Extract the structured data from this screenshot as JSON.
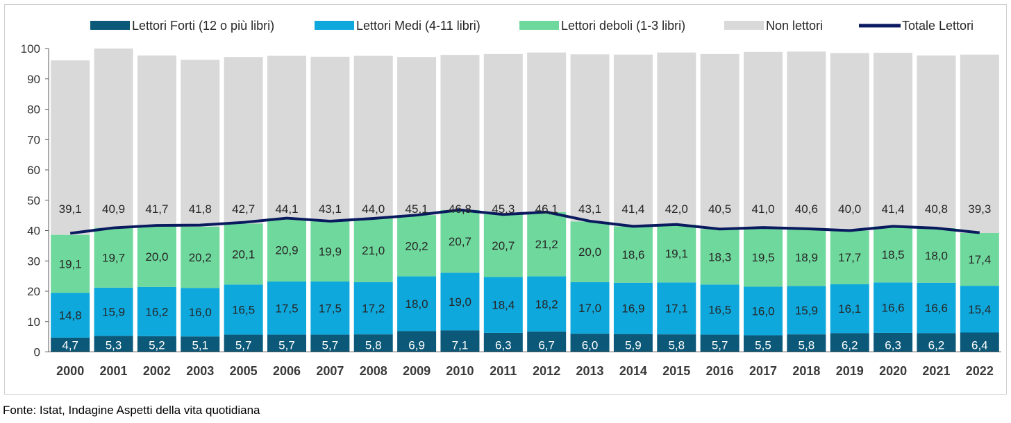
{
  "chart_data": {
    "type": "bar",
    "stacked": true,
    "categories": [
      "2000",
      "2001",
      "2002",
      "2003",
      "2005",
      "2006",
      "2007",
      "2008",
      "2009",
      "2010",
      "2011",
      "2012",
      "2013",
      "2014",
      "2015",
      "2016",
      "2017",
      "2018",
      "2019",
      "2020",
      "2021",
      "2022"
    ],
    "series": [
      {
        "name": "Lettori Forti (12 o più libri)",
        "color": "#0b5878",
        "values": [
          4.7,
          5.3,
          5.2,
          5.1,
          5.7,
          5.7,
          5.7,
          5.8,
          6.9,
          7.1,
          6.3,
          6.7,
          6.0,
          5.9,
          5.8,
          5.7,
          5.5,
          5.8,
          6.2,
          6.3,
          6.2,
          6.4
        ]
      },
      {
        "name": "Lettori Medi (4-11 libri)",
        "color": "#0ea8dd",
        "values": [
          14.8,
          15.9,
          16.2,
          16.0,
          16.5,
          17.5,
          17.5,
          17.2,
          18.0,
          19.0,
          18.4,
          18.2,
          17.0,
          16.9,
          17.1,
          16.5,
          16.0,
          15.9,
          16.1,
          16.6,
          16.6,
          15.4
        ]
      },
      {
        "name": "Lettori deboli (1-3 libri)",
        "color": "#6fd89c",
        "values": [
          19.1,
          19.7,
          20.0,
          20.2,
          20.1,
          20.9,
          19.9,
          21.0,
          20.2,
          20.7,
          20.7,
          21.2,
          20.0,
          18.6,
          19.1,
          18.3,
          19.5,
          18.9,
          17.7,
          18.5,
          18.0,
          17.4
        ]
      },
      {
        "name": "Non lettori",
        "color": "#d9d9d9",
        "values": [
          57.5,
          59.1,
          56.3,
          55.0,
          54.9,
          53.5,
          54.2,
          53.6,
          52.1,
          51.1,
          52.8,
          52.6,
          55.1,
          56.6,
          56.7,
          57.7,
          57.9,
          58.4,
          58.5,
          57.2,
          56.9,
          58.8
        ]
      },
      {
        "name": "Totale Lettori",
        "color": "#0a1a5e",
        "type": "line",
        "values": [
          39.1,
          40.9,
          41.7,
          41.8,
          42.7,
          44.1,
          43.1,
          44.0,
          45.1,
          46.8,
          45.3,
          46.1,
          43.1,
          41.4,
          42.0,
          40.5,
          41.0,
          40.6,
          40.0,
          41.4,
          40.8,
          39.3
        ]
      }
    ],
    "ylim": [
      0,
      100
    ],
    "yticks": [
      0,
      10,
      20,
      30,
      40,
      50,
      60,
      70,
      80,
      90,
      100
    ],
    "grid": false,
    "legend": "top"
  },
  "source": "Fonte: Istat, Indagine Aspetti della vita quotidiana"
}
